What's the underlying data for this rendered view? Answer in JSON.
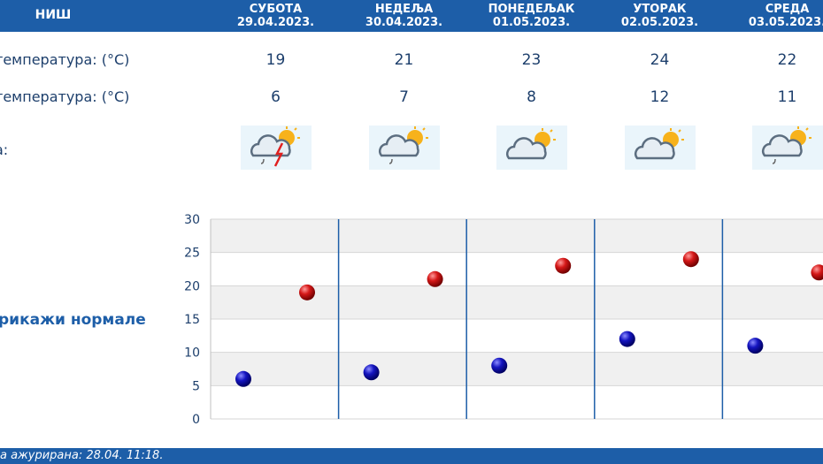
{
  "header": {
    "city": "НИШ",
    "days": [
      {
        "name": "СУБОТА",
        "date": "29.04.2023."
      },
      {
        "name": "НЕДЕЉА",
        "date": "30.04.2023."
      },
      {
        "name": "ПОНЕДЕЉАК",
        "date": "01.05.2023."
      },
      {
        "name": "УТОРАК",
        "date": "02.05.2023."
      },
      {
        "name": "СРЕДА",
        "date": "03.05.2023."
      }
    ]
  },
  "rows": {
    "max_label": "температура: (°C)",
    "min_label": "температура: (°C)",
    "weather_label": "а:"
  },
  "icons": [
    "partly-cloudy-thunder-rain-icon",
    "partly-cloudy-rain-icon",
    "partly-cloudy-icon",
    "partly-cloudy-icon",
    "partly-cloudy-rain-icon"
  ],
  "toggle_label": "рикажи нормале",
  "footer": {
    "updated_label": "а ажурирана:",
    "updated_value": "28.04. 11:18."
  },
  "colors": {
    "header": "#1d5ea8",
    "max_point": "#cc1010",
    "min_point": "#1010b0",
    "divider": "#1d5ea8"
  },
  "chart_data": {
    "type": "scatter",
    "categories": [
      "29.04.2023.",
      "30.04.2023.",
      "01.05.2023.",
      "02.05.2023.",
      "03.05.2023."
    ],
    "series": [
      {
        "name": "max",
        "values": [
          19,
          21,
          23,
          24,
          22
        ]
      },
      {
        "name": "min",
        "values": [
          6,
          7,
          8,
          12,
          11
        ]
      }
    ],
    "ylim": [
      0,
      30
    ],
    "yticks": [
      "0",
      "5",
      "10",
      "15",
      "20",
      "25",
      "30"
    ],
    "grid": true
  }
}
